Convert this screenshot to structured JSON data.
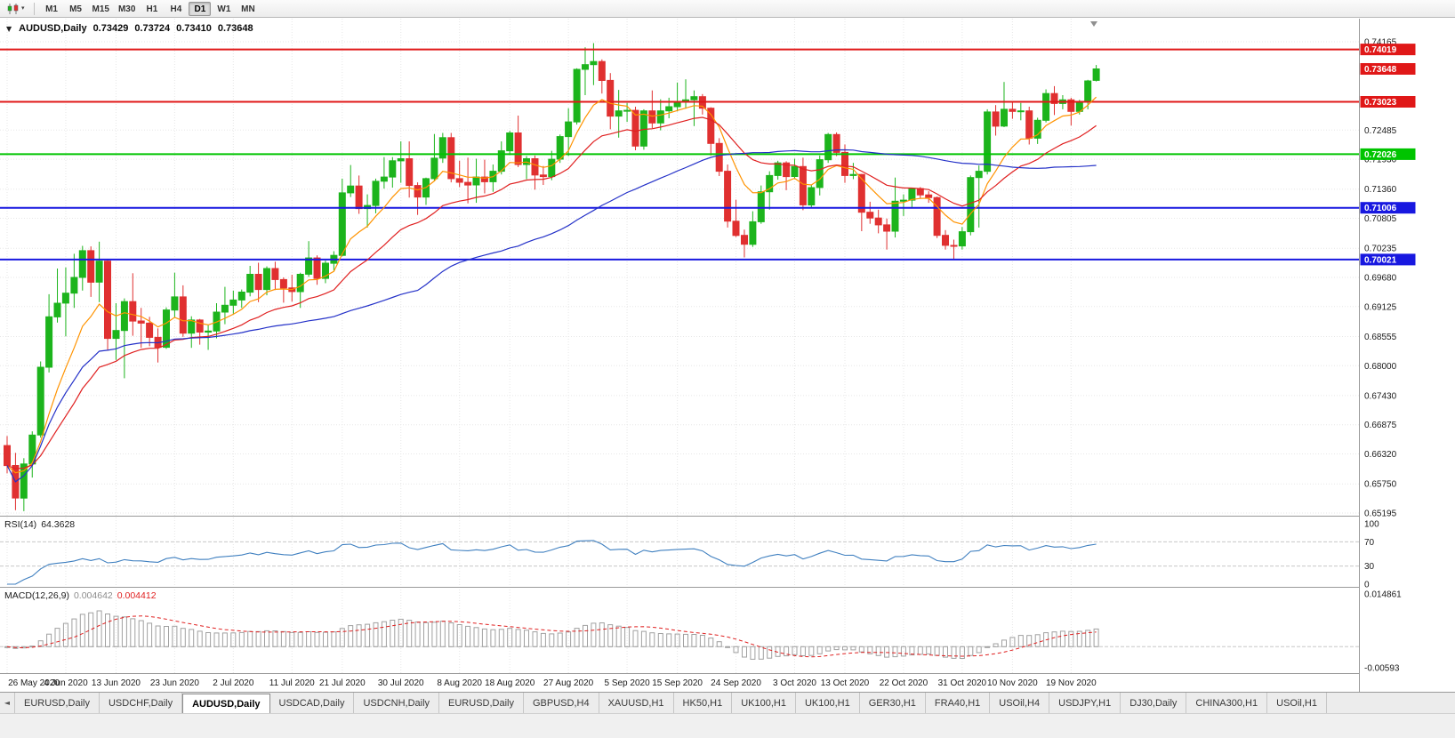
{
  "icons": {
    "collapse": "▼",
    "dropdown_caret": "▾",
    "tab_scroll_left": "◄"
  },
  "toolbar": {
    "timeframes": [
      "M1",
      "M5",
      "M15",
      "M30",
      "H1",
      "H4",
      "D1",
      "W1",
      "MN"
    ],
    "active_timeframe": "D1"
  },
  "chart_title": {
    "symbol_period": "AUDUSD,Daily",
    "open": "0.73429",
    "high": "0.73724",
    "low": "0.73410",
    "close": "0.73648"
  },
  "tabs": [
    "EURUSD,Daily",
    "USDCHF,Daily",
    "AUDUSD,Daily",
    "USDCAD,Daily",
    "USDCNH,Daily",
    "EURUSD,Daily",
    "GBPUSD,H4",
    "XAUUSD,H1",
    "HK50,H1",
    "UK100,H1",
    "UK100,H1",
    "GER30,H1",
    "FRA40,H1",
    "USOil,H4",
    "USDJPY,H1",
    "DJ30,Daily",
    "CHINA300,H1",
    "USOil,H1"
  ],
  "active_tab_index": 2,
  "chart_data": {
    "type": "candlestick",
    "symbol": "AUDUSD",
    "period": "Daily",
    "last_ohlc": {
      "open": 0.73429,
      "high": 0.73724,
      "low": 0.7341,
      "close": 0.73648
    },
    "colors": {
      "up": "#1cb41c",
      "down": "#e03030",
      "ma_fast": "#ff9300",
      "ma_mid": "#e02020",
      "ma_slow": "#2431c8",
      "grid": "#e7e7e7",
      "divider": "#9a9a9a",
      "rsi_line": "#4080c0",
      "macd_hist": "#a0a0a0",
      "macd_signal": "#e02020",
      "level_red": "#e01818",
      "level_green": "#00c400",
      "level_blue": "#1818e0",
      "axis_text": "#1a1a1a"
    },
    "price_axis": {
      "top_price": 0.74165,
      "bottom_price": 0.65195,
      "visible_ticks": [
        "0.74165",
        "0.72485",
        "0.71930",
        "0.71360",
        "0.70805",
        "0.70235",
        "0.69680",
        "0.69125",
        "0.68555",
        "0.68000",
        "0.67430",
        "0.66875",
        "0.66320",
        "0.65750",
        "0.65195"
      ],
      "badges": [
        {
          "value": "0.74019",
          "color": "#e01818"
        },
        {
          "value": "0.73648",
          "color": "#e01818"
        },
        {
          "value": "0.73023",
          "color": "#e01818"
        },
        {
          "value": "0.72026",
          "color": "#00c400"
        },
        {
          "value": "0.71006",
          "color": "#1818e0"
        },
        {
          "value": "0.70021",
          "color": "#1818e0"
        }
      ]
    },
    "horizontal_lines": [
      {
        "price": 0.74019,
        "color": "#e01818"
      },
      {
        "price": 0.73023,
        "color": "#e01818"
      },
      {
        "price": 0.72026,
        "color": "#00c400"
      },
      {
        "price": 0.71006,
        "color": "#1818e0"
      },
      {
        "price": 0.70021,
        "color": "#1818e0"
      }
    ],
    "moving_averages": [
      {
        "type": "ema",
        "period": 8,
        "color": "#ff9300"
      },
      {
        "type": "ema",
        "period": 20,
        "color": "#e02020"
      },
      {
        "type": "sma",
        "period": 50,
        "color": "#2431c8"
      }
    ],
    "date_labels": [
      {
        "i": 0,
        "label": "26 May 2020"
      },
      {
        "i": 7,
        "label": "4 Jun 2020"
      },
      {
        "i": 13,
        "label": "13 Jun 2020"
      },
      {
        "i": 20,
        "label": "23 Jun 2020"
      },
      {
        "i": 27,
        "label": "2 Jul 2020"
      },
      {
        "i": 34,
        "label": "11 Jul 2020"
      },
      {
        "i": 40,
        "label": "21 Jul 2020"
      },
      {
        "i": 47,
        "label": "30 Jul 2020"
      },
      {
        "i": 54,
        "label": "8 Aug 2020"
      },
      {
        "i": 60,
        "label": "18 Aug 2020"
      },
      {
        "i": 67,
        "label": "27 Aug 2020"
      },
      {
        "i": 74,
        "label": "5 Sep 2020"
      },
      {
        "i": 80,
        "label": "15 Sep 2020"
      },
      {
        "i": 87,
        "label": "24 Sep 2020"
      },
      {
        "i": 94,
        "label": "3 Oct 2020"
      },
      {
        "i": 100,
        "label": "13 Oct 2020"
      },
      {
        "i": 107,
        "label": "22 Oct 2020"
      },
      {
        "i": 114,
        "label": "31 Oct 2020"
      },
      {
        "i": 120,
        "label": "10 Nov 2020"
      },
      {
        "i": 127,
        "label": "19 Nov 2020"
      }
    ],
    "rsi": {
      "name": "RSI(14)",
      "current": "64.3628",
      "period": 14,
      "levels": [
        "100",
        "70",
        "30",
        "0"
      ]
    },
    "macd": {
      "name": "MACD(12,26,9)",
      "main": "0.004642",
      "signal": "0.004412",
      "fast": 12,
      "slow": 26,
      "signal_period": 9,
      "axis_max": "0.014861",
      "axis_min": "-0.00593",
      "scale_max": 0.014861,
      "scale_min": -0.00593
    },
    "candles": [
      [
        0.6648,
        0.6666,
        0.6595,
        0.661
      ],
      [
        0.661,
        0.6634,
        0.6525,
        0.6548
      ],
      [
        0.6548,
        0.6624,
        0.6523,
        0.6613
      ],
      [
        0.6613,
        0.6675,
        0.6587,
        0.6668
      ],
      [
        0.6668,
        0.6808,
        0.6663,
        0.6797
      ],
      [
        0.6797,
        0.6936,
        0.6787,
        0.6893
      ],
      [
        0.6893,
        0.6985,
        0.6882,
        0.6919
      ],
      [
        0.6919,
        0.6987,
        0.6856,
        0.6938
      ],
      [
        0.6938,
        0.7013,
        0.691,
        0.6968
      ],
      [
        0.6968,
        0.7028,
        0.6943,
        0.7019
      ],
      [
        0.7019,
        0.7027,
        0.6931,
        0.6959
      ],
      [
        0.6959,
        0.7036,
        0.6921,
        0.6999
      ],
      [
        0.6999,
        0.7003,
        0.6829,
        0.6852
      ],
      [
        0.6852,
        0.6919,
        0.6811,
        0.6867
      ],
      [
        0.6867,
        0.6928,
        0.6776,
        0.6922
      ],
      [
        0.6922,
        0.6976,
        0.6857,
        0.6885
      ],
      [
        0.6885,
        0.691,
        0.6834,
        0.6881
      ],
      [
        0.6881,
        0.6893,
        0.6837,
        0.6854
      ],
      [
        0.6854,
        0.6871,
        0.6806,
        0.6835
      ],
      [
        0.6835,
        0.6911,
        0.6832,
        0.6906
      ],
      [
        0.6906,
        0.6977,
        0.6892,
        0.6931
      ],
      [
        0.6931,
        0.6953,
        0.6855,
        0.6862
      ],
      [
        0.6862,
        0.6894,
        0.6834,
        0.6887
      ],
      [
        0.6887,
        0.6889,
        0.684,
        0.6864
      ],
      [
        0.6864,
        0.6877,
        0.683,
        0.6866
      ],
      [
        0.6866,
        0.6919,
        0.6852,
        0.6902
      ],
      [
        0.6902,
        0.695,
        0.6879,
        0.6915
      ],
      [
        0.6915,
        0.6943,
        0.6899,
        0.6925
      ],
      [
        0.6925,
        0.6945,
        0.691,
        0.694
      ],
      [
        0.694,
        0.699,
        0.6932,
        0.6974
      ],
      [
        0.6974,
        0.6996,
        0.6921,
        0.6945
      ],
      [
        0.6945,
        0.6989,
        0.6934,
        0.6985
      ],
      [
        0.6985,
        0.6998,
        0.6944,
        0.6964
      ],
      [
        0.6964,
        0.6968,
        0.692,
        0.6948
      ],
      [
        0.6948,
        0.6973,
        0.6922,
        0.6941
      ],
      [
        0.6941,
        0.6977,
        0.691,
        0.6974
      ],
      [
        0.6974,
        0.7037,
        0.6969,
        0.7005
      ],
      [
        0.7005,
        0.701,
        0.6954,
        0.6966
      ],
      [
        0.6966,
        0.7,
        0.6957,
        0.6995
      ],
      [
        0.6995,
        0.7018,
        0.6981,
        0.701
      ],
      [
        0.701,
        0.7156,
        0.7008,
        0.7129
      ],
      [
        0.7129,
        0.7182,
        0.7121,
        0.7142
      ],
      [
        0.7142,
        0.7162,
        0.7089,
        0.7099
      ],
      [
        0.7099,
        0.7126,
        0.7063,
        0.7105
      ],
      [
        0.7105,
        0.7156,
        0.709,
        0.7151
      ],
      [
        0.7151,
        0.7197,
        0.7137,
        0.7159
      ],
      [
        0.7159,
        0.7197,
        0.7139,
        0.719
      ],
      [
        0.719,
        0.7227,
        0.7148,
        0.7194
      ],
      [
        0.7194,
        0.7227,
        0.712,
        0.7143
      ],
      [
        0.7143,
        0.7149,
        0.7087,
        0.7121
      ],
      [
        0.7121,
        0.7158,
        0.7106,
        0.7156
      ],
      [
        0.7156,
        0.7241,
        0.7152,
        0.7195
      ],
      [
        0.7195,
        0.7243,
        0.7186,
        0.7234
      ],
      [
        0.7234,
        0.7243,
        0.7149,
        0.7156
      ],
      [
        0.7156,
        0.719,
        0.714,
        0.7149
      ],
      [
        0.7149,
        0.7196,
        0.7109,
        0.7144
      ],
      [
        0.7144,
        0.7194,
        0.711,
        0.7159
      ],
      [
        0.7159,
        0.7192,
        0.7128,
        0.715
      ],
      [
        0.715,
        0.7183,
        0.7131,
        0.717
      ],
      [
        0.717,
        0.7227,
        0.7164,
        0.7209
      ],
      [
        0.7209,
        0.7247,
        0.7201,
        0.7243
      ],
      [
        0.7243,
        0.7276,
        0.7178,
        0.7183
      ],
      [
        0.7183,
        0.7199,
        0.7155,
        0.7194
      ],
      [
        0.7194,
        0.72,
        0.7135,
        0.7163
      ],
      [
        0.7163,
        0.718,
        0.7144,
        0.716
      ],
      [
        0.716,
        0.7209,
        0.7153,
        0.7193
      ],
      [
        0.7193,
        0.724,
        0.7186,
        0.7236
      ],
      [
        0.7236,
        0.729,
        0.7199,
        0.7264
      ],
      [
        0.7264,
        0.7366,
        0.7259,
        0.7364
      ],
      [
        0.7364,
        0.7406,
        0.7315,
        0.7373
      ],
      [
        0.7373,
        0.7414,
        0.7334,
        0.7379
      ],
      [
        0.7379,
        0.7383,
        0.7318,
        0.7343
      ],
      [
        0.7343,
        0.7357,
        0.725,
        0.7275
      ],
      [
        0.7275,
        0.7325,
        0.7234,
        0.7285
      ],
      [
        0.7285,
        0.73,
        0.7264,
        0.7286
      ],
      [
        0.7286,
        0.7293,
        0.721,
        0.7218
      ],
      [
        0.7218,
        0.7288,
        0.7211,
        0.7285
      ],
      [
        0.7285,
        0.7324,
        0.7252,
        0.7262
      ],
      [
        0.7262,
        0.7307,
        0.7248,
        0.7285
      ],
      [
        0.7285,
        0.731,
        0.7271,
        0.7293
      ],
      [
        0.7293,
        0.7339,
        0.7284,
        0.7303
      ],
      [
        0.7303,
        0.7345,
        0.7289,
        0.7306
      ],
      [
        0.7306,
        0.7324,
        0.7256,
        0.7312
      ],
      [
        0.7312,
        0.7317,
        0.7278,
        0.729
      ],
      [
        0.729,
        0.7292,
        0.72,
        0.7223
      ],
      [
        0.7223,
        0.7233,
        0.7161,
        0.717
      ],
      [
        0.717,
        0.7183,
        0.7063,
        0.7075
      ],
      [
        0.7075,
        0.7116,
        0.7045,
        0.7048
      ],
      [
        0.7048,
        0.7059,
        0.7006,
        0.7031
      ],
      [
        0.7031,
        0.7094,
        0.7026,
        0.7074
      ],
      [
        0.7074,
        0.7143,
        0.707,
        0.7131
      ],
      [
        0.7131,
        0.717,
        0.7097,
        0.7162
      ],
      [
        0.7162,
        0.719,
        0.7154,
        0.7186
      ],
      [
        0.7186,
        0.7189,
        0.7134,
        0.716
      ],
      [
        0.716,
        0.7194,
        0.7155,
        0.7179
      ],
      [
        0.7179,
        0.7196,
        0.7096,
        0.7106
      ],
      [
        0.7106,
        0.7144,
        0.7101,
        0.7139
      ],
      [
        0.7139,
        0.72,
        0.7124,
        0.7192
      ],
      [
        0.7192,
        0.7243,
        0.7186,
        0.724
      ],
      [
        0.724,
        0.7244,
        0.7199,
        0.7206
      ],
      [
        0.7206,
        0.7221,
        0.7148,
        0.7162
      ],
      [
        0.7162,
        0.7186,
        0.7155,
        0.7164
      ],
      [
        0.7164,
        0.7165,
        0.7056,
        0.7092
      ],
      [
        0.7092,
        0.7112,
        0.707,
        0.7081
      ],
      [
        0.7081,
        0.7097,
        0.7052,
        0.7068
      ],
      [
        0.7068,
        0.708,
        0.7021,
        0.7056
      ],
      [
        0.7056,
        0.7158,
        0.7044,
        0.7113
      ],
      [
        0.7113,
        0.7126,
        0.7085,
        0.7115
      ],
      [
        0.7115,
        0.7139,
        0.7101,
        0.7137
      ],
      [
        0.7137,
        0.714,
        0.7118,
        0.7125
      ],
      [
        0.7125,
        0.7132,
        0.711,
        0.712
      ],
      [
        0.712,
        0.7122,
        0.7043,
        0.7048
      ],
      [
        0.7048,
        0.7058,
        0.7021,
        0.7029
      ],
      [
        0.7029,
        0.704,
        0.7002,
        0.7028
      ],
      [
        0.7028,
        0.7064,
        0.7021,
        0.7055
      ],
      [
        0.7055,
        0.7162,
        0.7048,
        0.7158
      ],
      [
        0.7158,
        0.7181,
        0.7063,
        0.717
      ],
      [
        0.717,
        0.7288,
        0.7164,
        0.7283
      ],
      [
        0.7283,
        0.7296,
        0.7238,
        0.7256
      ],
      [
        0.7256,
        0.734,
        0.7254,
        0.7288
      ],
      [
        0.7288,
        0.7302,
        0.727,
        0.7284
      ],
      [
        0.7284,
        0.73,
        0.7267,
        0.7285
      ],
      [
        0.7285,
        0.7293,
        0.7221,
        0.7233
      ],
      [
        0.7233,
        0.7272,
        0.7222,
        0.7267
      ],
      [
        0.7267,
        0.7326,
        0.7263,
        0.7318
      ],
      [
        0.7318,
        0.7332,
        0.7277,
        0.7299
      ],
      [
        0.7299,
        0.7315,
        0.7288,
        0.7306
      ],
      [
        0.7306,
        0.731,
        0.7257,
        0.7284
      ],
      [
        0.7284,
        0.7306,
        0.7278,
        0.7303
      ],
      [
        0.7303,
        0.7344,
        0.7288,
        0.7342
      ],
      [
        0.73429,
        0.73724,
        0.7341,
        0.73648
      ]
    ]
  }
}
